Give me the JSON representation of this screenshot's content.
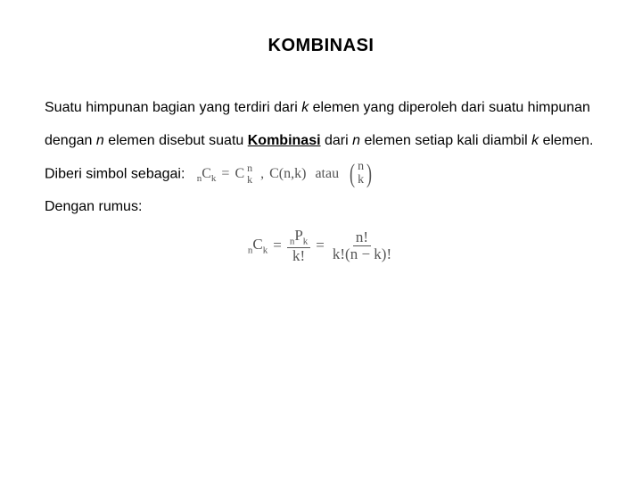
{
  "title": "KOMBINASI",
  "para": {
    "t1": "Suatu himpunan bagian yang terdiri dari ",
    "k1": "k",
    "t2": " elemen yang diperoleh dari suatu himpunan dengan ",
    "n1": "n",
    "t3": " elemen disebut suatu ",
    "komb": "Kombinasi",
    "t4": " dari ",
    "n2": "n",
    "t5": " elemen setiap kali diambil ",
    "k2": "k",
    "t6": " elemen."
  },
  "line_symbol": "Diberi simbol sebagai:",
  "line_rumus": "Dengan rumus:",
  "symbols": {
    "nCk_pre_n": "n",
    "nCk_C": "C",
    "nCk_post_k": "k",
    "eq": "=",
    "C2_C": "C",
    "C2_top": "n",
    "C2_bot": "k",
    "comma": ",",
    "Cfn": "C(n,k)",
    "atau": "atau",
    "binom_top": "n",
    "binom_bot": "k"
  },
  "formula": {
    "lhs_n": "n",
    "lhs_C": "C",
    "lhs_k": "k",
    "eq1": "=",
    "mid_top_n": "n",
    "mid_top_P": "P",
    "mid_top_k": "k",
    "mid_bot": "k!",
    "eq2": "=",
    "rhs_top": "n!",
    "rhs_bot": "k!(n − k)!"
  },
  "colors": {
    "text": "#000000",
    "math": "#555555",
    "background": "#ffffff"
  }
}
